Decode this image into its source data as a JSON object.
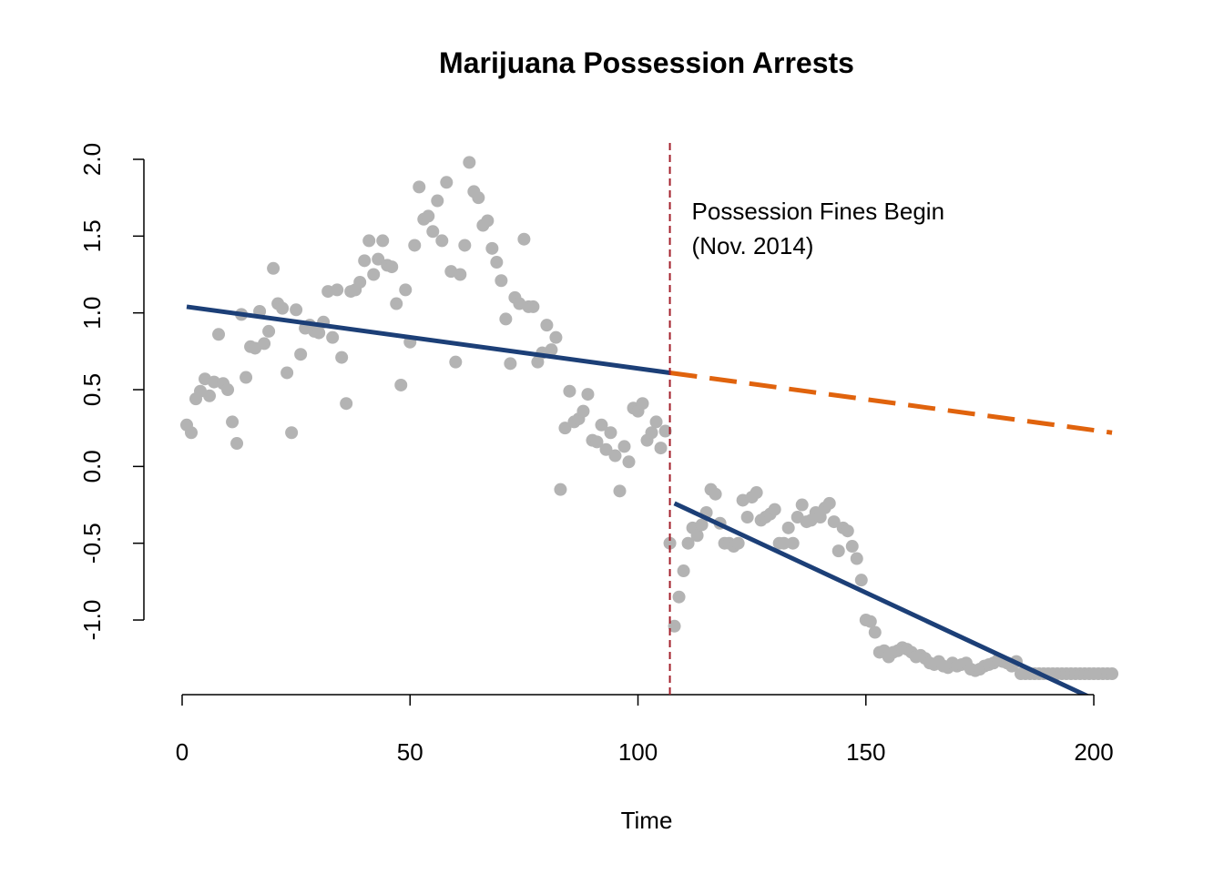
{
  "chart_data": {
    "type": "scatter",
    "title": "Marijuana Possession Arrests",
    "x_label": "Time",
    "x": [
      1,
      2,
      3,
      4,
      5,
      6,
      7,
      8,
      9,
      10,
      11,
      12,
      13,
      14,
      15,
      16,
      17,
      18,
      19,
      20,
      21,
      22,
      23,
      24,
      25,
      26,
      27,
      28,
      29,
      30,
      31,
      32,
      33,
      34,
      35,
      36,
      37,
      38,
      39,
      40,
      41,
      42,
      43,
      44,
      45,
      46,
      47,
      48,
      49,
      50,
      51,
      52,
      53,
      54,
      55,
      56,
      57,
      58,
      59,
      60,
      61,
      62,
      63,
      64,
      65,
      66,
      67,
      68,
      69,
      70,
      71,
      72,
      73,
      74,
      75,
      76,
      77,
      78,
      79,
      80,
      81,
      82,
      83,
      84,
      85,
      86,
      87,
      88,
      89,
      90,
      91,
      92,
      93,
      94,
      95,
      96,
      97,
      98,
      99,
      100,
      101,
      102,
      103,
      104,
      105,
      106,
      107,
      108,
      109,
      110,
      111,
      112,
      113,
      114,
      115,
      116,
      117,
      118,
      119,
      120,
      121,
      122,
      123,
      124,
      125,
      126,
      127,
      128,
      129,
      130,
      131,
      132,
      133,
      134,
      135,
      136,
      137,
      138,
      139,
      140,
      141,
      142,
      143,
      144,
      145,
      146,
      147,
      148,
      149,
      150,
      151,
      152,
      153,
      154,
      155,
      156,
      157,
      158,
      159,
      160,
      161,
      162,
      163,
      164,
      165,
      166,
      167,
      168,
      169,
      170,
      171,
      172,
      173,
      174,
      175,
      176,
      177,
      178,
      179,
      180,
      181,
      182,
      183,
      184,
      185,
      186,
      187,
      188,
      189,
      190,
      191,
      192,
      193,
      194,
      195,
      196,
      197,
      198,
      199,
      200,
      201,
      202,
      203,
      204
    ],
    "values": [
      0.27,
      0.22,
      0.44,
      0.49,
      0.57,
      0.46,
      0.55,
      0.86,
      0.54,
      0.5,
      0.29,
      0.15,
      0.99,
      0.58,
      0.78,
      0.77,
      1.01,
      0.8,
      0.88,
      1.29,
      1.06,
      1.03,
      0.61,
      0.22,
      1.02,
      0.73,
      0.9,
      0.92,
      0.88,
      0.87,
      0.94,
      1.14,
      0.84,
      1.15,
      0.71,
      0.41,
      1.14,
      1.15,
      1.2,
      1.34,
      1.47,
      1.25,
      1.35,
      1.47,
      1.31,
      1.3,
      1.06,
      0.53,
      1.15,
      0.81,
      1.44,
      1.82,
      1.61,
      1.63,
      1.53,
      1.73,
      1.47,
      1.85,
      1.27,
      0.68,
      1.25,
      1.44,
      1.98,
      1.79,
      1.75,
      1.57,
      1.6,
      1.42,
      1.33,
      1.21,
      0.96,
      0.67,
      1.1,
      1.06,
      1.48,
      1.04,
      1.04,
      0.68,
      0.74,
      0.92,
      0.76,
      0.84,
      -0.15,
      0.25,
      0.49,
      0.29,
      0.31,
      0.36,
      0.47,
      0.17,
      0.16,
      0.27,
      0.11,
      0.22,
      0.07,
      -0.16,
      0.13,
      0.03,
      0.38,
      0.36,
      0.41,
      0.17,
      0.22,
      0.29,
      0.12,
      0.23,
      -0.5,
      -1.04,
      -0.85,
      -0.68,
      -0.5,
      -0.4,
      -0.45,
      -0.38,
      -0.3,
      -0.15,
      -0.18,
      -0.37,
      -0.5,
      -0.5,
      -0.52,
      -0.5,
      -0.22,
      -0.33,
      -0.2,
      -0.17,
      -0.35,
      -0.33,
      -0.31,
      -0.28,
      -0.5,
      -0.5,
      -0.4,
      -0.5,
      -0.33,
      -0.25,
      -0.36,
      -0.35,
      -0.3,
      -0.33,
      -0.27,
      -0.24,
      -0.36,
      -0.55,
      -0.4,
      -0.42,
      -0.52,
      -0.6,
      -0.74,
      -1.0,
      -1.01,
      -1.08,
      -1.21,
      -1.2,
      -1.24,
      -1.21,
      -1.2,
      -1.18,
      -1.19,
      -1.21,
      -1.24,
      -1.23,
      -1.25,
      -1.28,
      -1.29,
      -1.27,
      -1.3,
      -1.31,
      -1.28,
      -1.3,
      -1.29,
      -1.28,
      -1.32,
      -1.33,
      -1.32,
      -1.3,
      -1.29,
      -1.28,
      -1.26,
      -1.27,
      -1.28,
      -1.3,
      -1.27,
      -1.35,
      -1.35,
      -1.35,
      -1.35,
      -1.35,
      -1.35,
      -1.35,
      -1.35,
      -1.35,
      -1.35,
      -1.35,
      -1.35,
      -1.35,
      -1.35,
      -1.35,
      -1.35,
      -1.35,
      -1.35,
      -1.35,
      -1.35,
      -1.35
    ],
    "color": "#b3b3b3",
    "trend_lines": [
      {
        "x": [
          1,
          107
        ],
        "values": [
          1.04,
          0.61
        ],
        "color": "#1c3f77",
        "dashed": false
      },
      {
        "x": [
          107,
          204
        ],
        "values": [
          0.61,
          0.22
        ],
        "color": "#e0630d",
        "dashed": true
      },
      {
        "x": [
          108,
          204
        ],
        "values": [
          -0.24,
          -1.57
        ],
        "color": "#1c3f77",
        "dashed": false
      }
    ],
    "vline": {
      "x": 107,
      "color": "#a3202b"
    },
    "annotation": [
      "Possession Fines Begin",
      "(Nov. 2014)"
    ],
    "xlim": [
      -7.12,
      212.12
    ],
    "xticks": [
      0,
      50,
      100,
      150,
      200
    ],
    "ylim": [
      -1.486,
      2.07
    ],
    "yticks": [
      {
        "value": -1,
        "label": "-1.0"
      },
      {
        "value": -0.5,
        "label": "-0.5"
      },
      {
        "value": 0,
        "label": "0.0"
      },
      {
        "value": 0.5,
        "label": "0.5"
      },
      {
        "value": 1,
        "label": "1.0"
      },
      {
        "value": 1.5,
        "label": "1.5"
      },
      {
        "value": 2,
        "label": "2.0"
      }
    ]
  }
}
